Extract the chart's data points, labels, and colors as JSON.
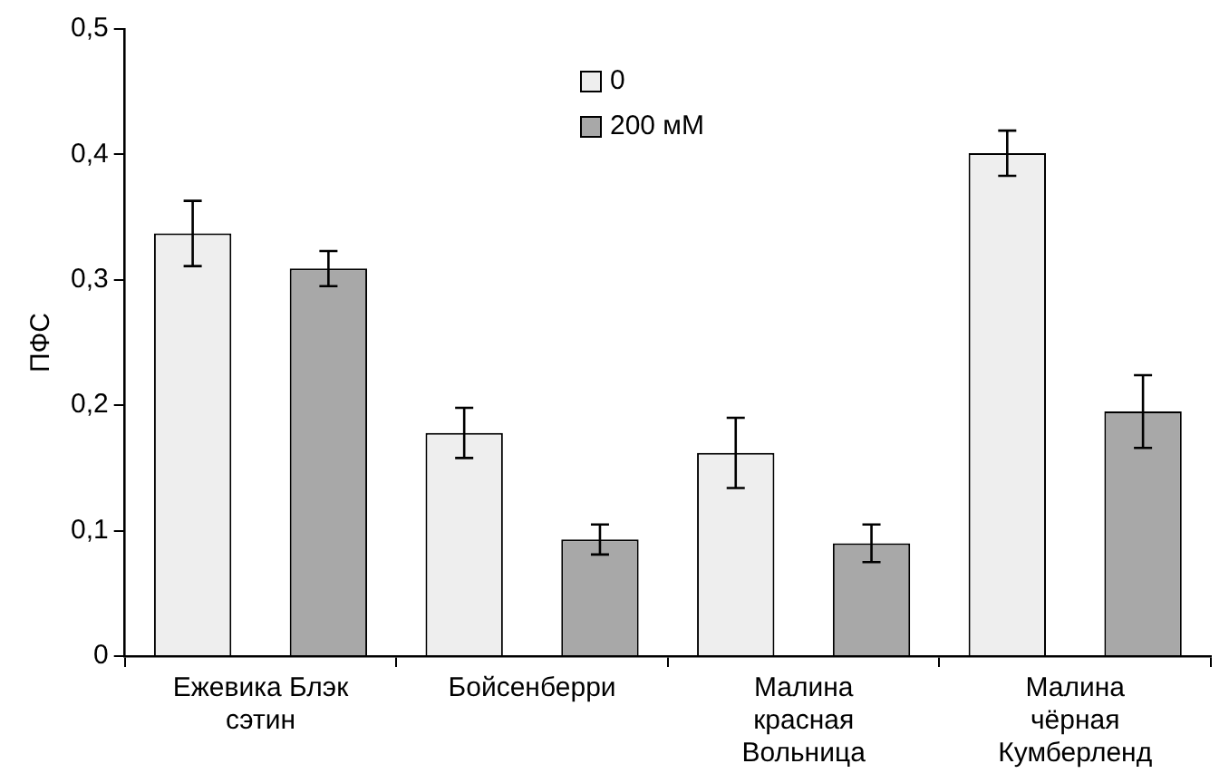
{
  "chart_data": {
    "type": "bar",
    "ylabel": "ПФС",
    "categories": [
      "Ежевика Блэк сэтин",
      "Бойсенберри",
      "Малина красная Вольница",
      "Малина чёрная Кумберленд"
    ],
    "series": [
      {
        "name": "0",
        "color": "#eeeeee",
        "values": [
          0.337,
          0.178,
          0.162,
          0.401
        ],
        "errors": [
          0.026,
          0.02,
          0.028,
          0.018
        ]
      },
      {
        "name": "200 мМ",
        "color": "#a8a8a8",
        "values": [
          0.309,
          0.093,
          0.09,
          0.195
        ],
        "errors": [
          0.014,
          0.012,
          0.015,
          0.029
        ]
      }
    ],
    "ylim": [
      0,
      0.5
    ],
    "yticks": [
      {
        "value": 0,
        "label": "0"
      },
      {
        "value": 0.1,
        "label": "0,1"
      },
      {
        "value": 0.2,
        "label": "0,2"
      },
      {
        "value": 0.3,
        "label": "0,3"
      },
      {
        "value": 0.4,
        "label": "0,4"
      },
      {
        "value": 0.5,
        "label": "0,5"
      }
    ],
    "grid": false,
    "legend": "top"
  }
}
